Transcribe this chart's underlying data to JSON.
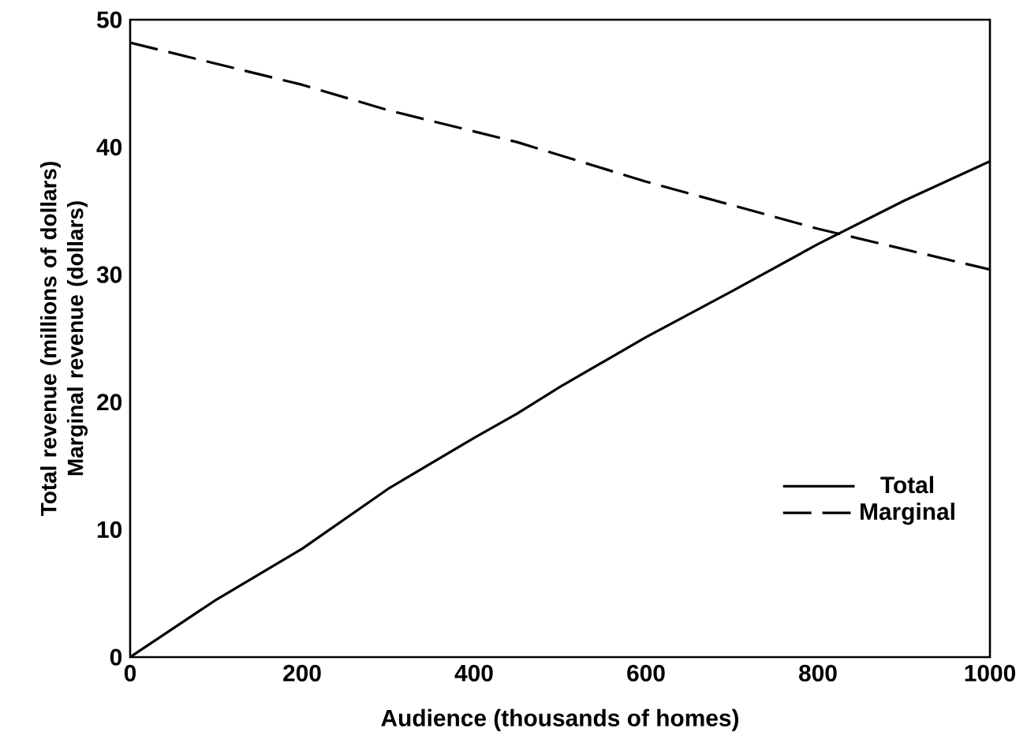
{
  "chart_data": {
    "type": "line",
    "xlabel": "Audience (thousands of homes)",
    "ylabel": "Total revenue (millions of dollars) Marginal revenue (dollars)",
    "xlim": [
      0,
      1000
    ],
    "ylim": [
      0,
      50
    ],
    "xticks": [
      0,
      200,
      400,
      600,
      800,
      1000
    ],
    "yticks": [
      0,
      10,
      20,
      30,
      40,
      50
    ],
    "legend": "bottom right",
    "grid": false,
    "marker": "none",
    "series": [
      {
        "name": "Total",
        "color": "#000000",
        "line_style": "solid",
        "x": [
          0,
          100,
          200,
          300,
          400,
          450,
          500,
          600,
          700,
          800,
          900,
          1000
        ],
        "values": [
          0,
          4.5,
          8.5,
          13.2,
          17.2,
          19.1,
          21.2,
          25.1,
          28.7,
          32.4,
          35.8,
          38.9
        ]
      },
      {
        "name": "Marginal",
        "color": "#000000",
        "line_style": "dashed",
        "x": [
          0,
          200,
          300,
          450,
          600,
          800,
          1000
        ],
        "values": [
          48.2,
          44.9,
          42.9,
          40.4,
          37.3,
          33.6,
          30.4
        ]
      }
    ]
  }
}
